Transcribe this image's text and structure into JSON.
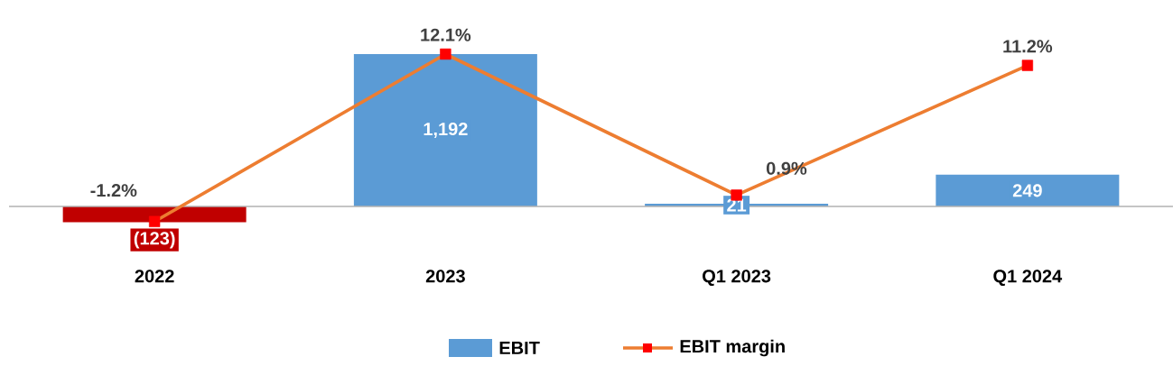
{
  "chart_data": {
    "type": "bar",
    "categories": [
      "2022",
      "2023",
      "Q1 2023",
      "Q1 2024"
    ],
    "tick_labels": "x",
    "legend": "bottom",
    "series": [
      {
        "name": "EBIT",
        "color": "#5b9bd5",
        "colors": [
          "#c00000",
          "#5b9bd5",
          "#5b9bd5",
          "#5b9bd5"
        ],
        "values": [
          -123,
          1192,
          21,
          249
        ],
        "value_labels": [
          "(123)",
          "1,192",
          "21",
          "249"
        ]
      },
      {
        "name": "EBIT margin",
        "type": "line",
        "axis": "y2",
        "color": "#ed7d31",
        "marker": "square",
        "colors": [
          "#ff0000",
          "#ff0000",
          "#ff0000",
          "#ff0000"
        ],
        "values": [
          -1.2,
          12.1,
          0.9,
          11.2
        ],
        "value_labels": [
          "-1.2%",
          "12.1%",
          "0.9%",
          "11.2%"
        ]
      }
    ]
  }
}
